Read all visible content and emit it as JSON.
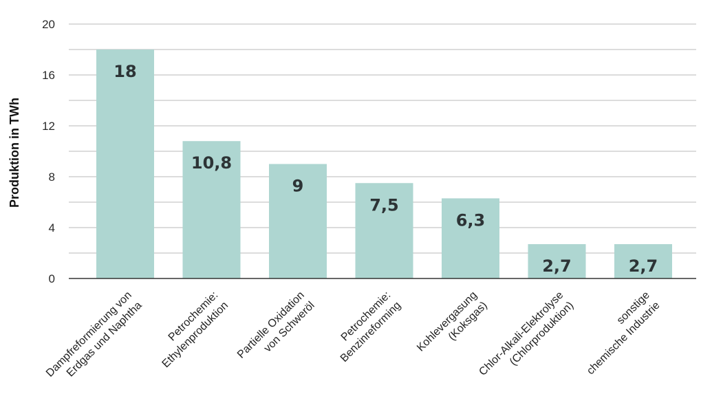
{
  "chart_data": {
    "type": "bar",
    "title": "",
    "xlabel": "",
    "ylabel": "Produktion in TWh",
    "ylim": [
      0,
      20
    ],
    "yticks": [
      0,
      4,
      8,
      12,
      16,
      20
    ],
    "grid": true,
    "bar_color": "#aed6d1",
    "grid_color": "#dcdcdc",
    "categories": [
      [
        "Dampfreformierung von",
        "Erdgas und Naphtha"
      ],
      [
        "Petrochemie:",
        "Ethylenproduktion"
      ],
      [
        "Partielle Oxidation",
        "von Schweröl"
      ],
      [
        "Petrochemie:",
        "Benzinreforming"
      ],
      [
        "Kohlevergasung",
        "(Koksgas)"
      ],
      [
        "Chlor-Alkali-Elektrolyse",
        "(Chlorproduktion)"
      ],
      [
        "sonstige",
        "chemische Industrie"
      ]
    ],
    "values": [
      18,
      10.8,
      9,
      7.5,
      6.3,
      2.7,
      2.7
    ],
    "data_labels": [
      "18",
      "10,8",
      "9",
      "7,5",
      "6,3",
      "2,7",
      "2,7"
    ]
  }
}
